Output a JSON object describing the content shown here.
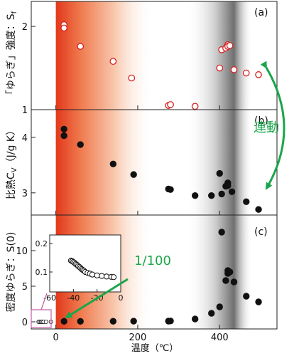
{
  "chart_data": {
    "type": "scatter",
    "xlabel": "温度（℃）",
    "xlim": [
      -60,
      540
    ],
    "x_ticks": [
      "0",
      "200",
      "400"
    ],
    "panels": [
      {
        "label": "(a)",
        "ylabel": "「ゆらぎ」強度：S",
        "ylabel_sub": "f",
        "ylim": [
          1.0,
          2.3
        ],
        "y_ticks": [
          "1",
          "2"
        ],
        "marker": "open-circle",
        "x": [
          20,
          20,
          60,
          140,
          185,
          275,
          280,
          340,
          400,
          405,
          415,
          420,
          420,
          425,
          435,
          465,
          495
        ],
        "y": [
          2.02,
          1.98,
          1.76,
          1.58,
          1.38,
          1.05,
          1.06,
          1.04,
          1.5,
          1.72,
          1.74,
          1.78,
          1.76,
          1.77,
          1.48,
          1.44,
          1.42
        ]
      },
      {
        "label": "(b)",
        "ylabel": "比熱C",
        "ylabel_sub": "V",
        "ylabel_unit": "（J/g K）",
        "ylim": [
          2.6,
          4.5
        ],
        "y_ticks": [
          "3",
          "4"
        ],
        "marker": "filled-circle",
        "x": [
          20,
          20,
          60,
          140,
          190,
          275,
          280,
          340,
          380,
          400,
          405,
          415,
          420,
          420,
          430,
          465,
          495
        ],
        "y": [
          4.15,
          4.03,
          3.87,
          3.52,
          3.33,
          3.07,
          3.06,
          2.95,
          2.95,
          3.35,
          2.98,
          3.12,
          3.18,
          3.13,
          3.02,
          2.84,
          2.7
        ]
      },
      {
        "label": "(c)",
        "ylabel": "密度ゆらぎ：S(0)",
        "ylim": [
          -1,
          15
        ],
        "y_ticks": [
          "0",
          "5",
          "10"
        ],
        "marker": "filled-circle",
        "x": [
          20,
          60,
          140,
          190,
          275,
          280,
          340,
          380,
          400,
          405,
          415,
          420,
          420,
          425,
          435,
          465,
          495
        ],
        "y": [
          0.07,
          0.07,
          0.08,
          0.09,
          0.1,
          0.12,
          0.4,
          1.2,
          2.1,
          12.6,
          5.8,
          6.8,
          7.2,
          7.0,
          5.6,
          3.6,
          2.8
        ],
        "inset": {
          "xlim": [
            -60,
            0
          ],
          "ylim": [
            0.03,
            0.23
          ],
          "x_ticks": [
            "-60",
            "-40",
            "-20",
            "0"
          ],
          "y_ticks": [
            "0.1",
            "0.2"
          ],
          "x": [
            -42,
            -41,
            -40,
            -39,
            -38,
            -37,
            -36,
            -35,
            -34,
            -33,
            -32,
            -31,
            -30,
            -28,
            -26,
            -24,
            -20,
            -16,
            -12,
            -8,
            -6
          ],
          "y": [
            0.14,
            0.138,
            0.135,
            0.132,
            0.128,
            0.125,
            0.121,
            0.118,
            0.114,
            0.11,
            0.107,
            0.104,
            0.1,
            0.097,
            0.094,
            0.091,
            0.088,
            0.086,
            0.084,
            0.083,
            0.082
          ]
        }
      }
    ],
    "annotations": {
      "link": "連動",
      "scale": "1/100"
    }
  },
  "colors": {
    "accent": "#1aa64a",
    "heat_region": "#e2381a",
    "open_marker_edge": "#d81e1e",
    "inset_box": "#c85ba2"
  }
}
